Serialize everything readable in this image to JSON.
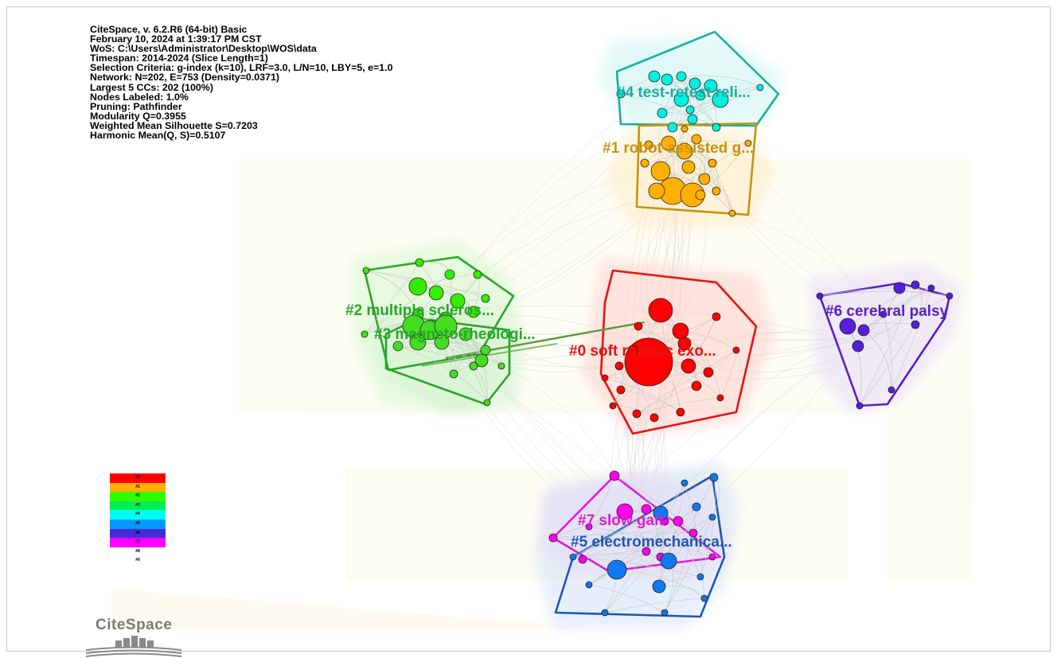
{
  "info": {
    "lines": [
      "CiteSpace, v. 6.2.R6 (64-bit) Basic",
      "February 10, 2024 at 1:39:17 PM CST",
      "WoS: C:\\Users\\Administrator\\Desktop\\WOS\\data",
      "Timespan: 2014-2024 (Slice Length=1)",
      "Selection Criteria: g-index (k=10), LRF=3.0, L/N=10, LBY=5, e=1.0",
      "Network: N=202, E=753 (Density=0.0371)",
      "Largest 5 CCs: 202 (100%)",
      "Nodes Labeled: 1.0%",
      "Pruning: Pathfinder",
      "Modularity Q=0.3955",
      "Weighted Mean Silhouette S=0.7203",
      "Harmonic Mean(Q, S)=0.5107"
    ]
  },
  "clusters": [
    {
      "id": 0,
      "label": "#0 soft robotic exo...",
      "color": "#e8120f"
    },
    {
      "id": 1,
      "label": "#1 robot-assisted g...",
      "color": "#c9920e"
    },
    {
      "id": 2,
      "label": "#2 multiple scleros...",
      "color": "#2aa62a"
    },
    {
      "id": 3,
      "label": "#3 magneto-rheologi...",
      "color": "#28a528"
    },
    {
      "id": 4,
      "label": "#4 test-retest reli...",
      "color": "#17b0a0"
    },
    {
      "id": 5,
      "label": "#5 electromechanica...",
      "color": "#1e56b4"
    },
    {
      "id": 6,
      "label": "#6 cerebral palsy",
      "color": "#5a1fc4"
    },
    {
      "id": 7,
      "label": "#7 slow gait",
      "color": "#e11ad2"
    }
  ],
  "legend": [
    {
      "label": "#0",
      "color": "#ff0000"
    },
    {
      "label": "#1",
      "color": "#ffb000"
    },
    {
      "label": "#2",
      "color": "#33ff00"
    },
    {
      "label": "#3",
      "color": "#00ee55"
    },
    {
      "label": "#4",
      "color": "#00ffee"
    },
    {
      "label": "#5",
      "color": "#0099ff"
    },
    {
      "label": "#6",
      "color": "#4a2ad8"
    },
    {
      "label": "#7",
      "color": "#ff00ff"
    },
    {
      "label": "#8",
      "color": "#ffffff"
    },
    {
      "label": "#9",
      "color": "#ffffff"
    }
  ],
  "logo": {
    "text": "CiteSpace"
  }
}
